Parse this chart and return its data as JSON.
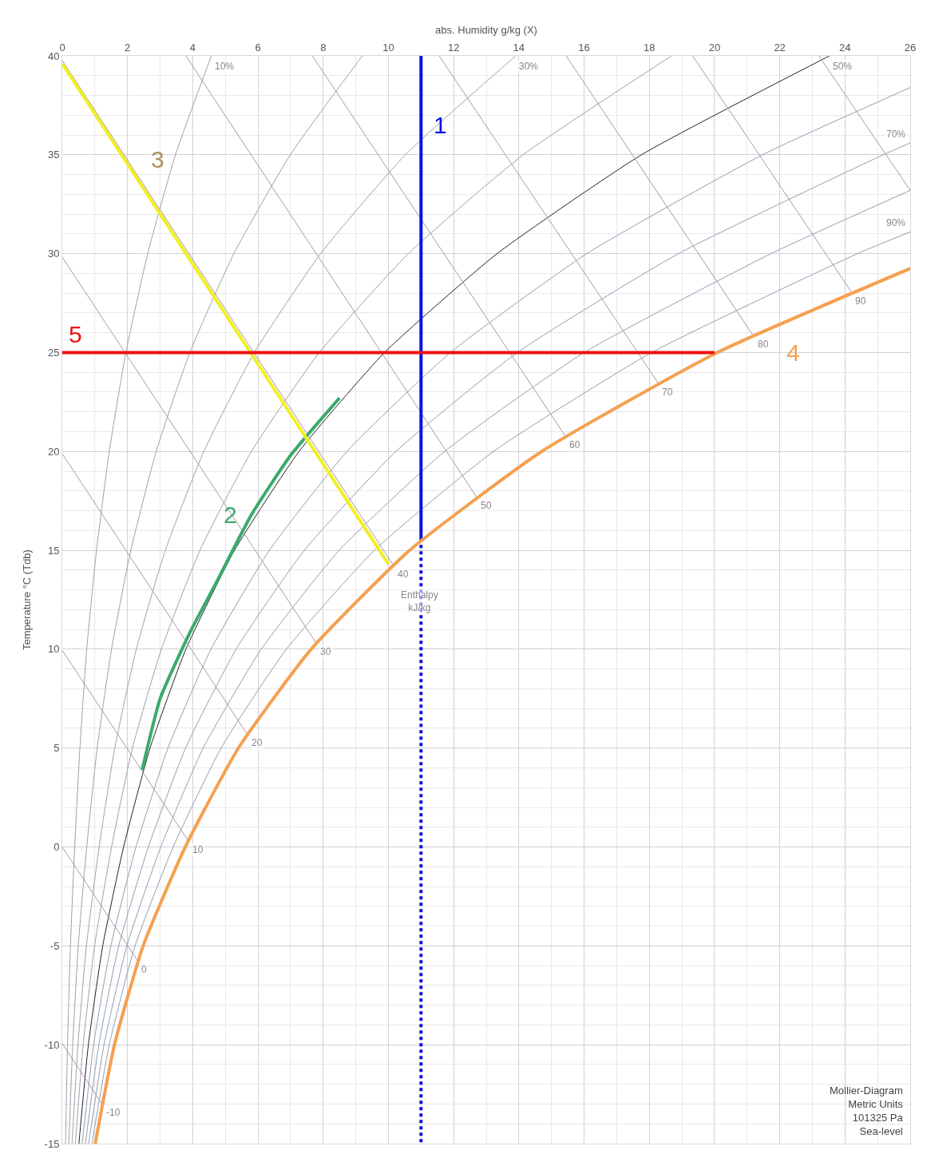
{
  "chart_data": {
    "type": "line",
    "xlabel": "abs. Humidity g/kg (X)",
    "ylabel": "Temperature °C (Tdb)",
    "xlim": [
      0,
      26
    ],
    "xticks": [
      0,
      2,
      4,
      6,
      8,
      10,
      12,
      14,
      16,
      18,
      20,
      22,
      24,
      26
    ],
    "ylim": [
      -15,
      40
    ],
    "yticks": [
      -15,
      -10,
      -5,
      0,
      5,
      10,
      15,
      20,
      25,
      30,
      35,
      40
    ],
    "grid": true,
    "marker": "none",
    "series": [
      {
        "color": "#a0a0a8",
        "x": [
          0.1,
          0.16,
          0.25,
          0.38,
          0.54,
          0.75,
          1.05,
          1.44,
          1.95,
          2.62,
          3.47,
          4.57
        ],
        "values": [
          -15,
          -10,
          -5,
          0,
          5,
          10,
          15,
          20,
          25,
          30,
          35,
          40
        ]
      },
      {
        "color": "#a0a0a8",
        "x": [
          0.2,
          0.32,
          0.49,
          0.75,
          1.07,
          1.51,
          2.1,
          2.88,
          3.91,
          5.26,
          6.99,
          9.2
        ],
        "values": [
          -15,
          -10,
          -5,
          0,
          5,
          10,
          15,
          20,
          25,
          30,
          35,
          40
        ]
      },
      {
        "color": "#a0a0a8",
        "x": [
          0.3,
          0.48,
          0.74,
          1.13,
          1.61,
          2.27,
          3.16,
          4.34,
          5.89,
          7.92,
          10.52,
          13.9
        ],
        "values": [
          -15,
          -10,
          -5,
          0,
          5,
          10,
          15,
          20,
          25,
          30,
          35,
          40
        ]
      },
      {
        "color": "#a0a0a8",
        "x": [
          0.4,
          0.64,
          0.99,
          1.51,
          2.15,
          3.04,
          4.22,
          5.8,
          7.88,
          10.61,
          14.13,
          18.68
        ],
        "values": [
          -15,
          -10,
          -5,
          0,
          5,
          10,
          15,
          20,
          25,
          30,
          35,
          40
        ]
      },
      {
        "color": "#222222",
        "x": [
          0.51,
          0.8,
          1.24,
          1.88,
          2.69,
          3.79,
          5.28,
          7.26,
          9.88,
          13.33,
          17.76,
          23.52
        ],
        "values": [
          -15,
          -10,
          -5,
          0,
          5,
          10,
          15,
          20,
          25,
          30,
          35,
          40
        ]
      },
      {
        "color": "#8f9fae",
        "x": [
          0.61,
          0.96,
          1.49,
          2.26,
          3.24,
          4.56,
          6.35,
          8.73,
          11.9,
          16.08,
          21.47,
          26
        ],
        "values": [
          -15,
          -10,
          -5,
          0,
          5,
          10,
          15,
          20,
          25,
          30,
          35,
          38.4
        ]
      },
      {
        "color": "#8f9fae",
        "x": [
          0.71,
          1.12,
          1.73,
          2.64,
          3.78,
          5.33,
          7.42,
          10.23,
          13.95,
          18.89,
          25.17,
          26
        ],
        "values": [
          -15,
          -10,
          -5,
          0,
          5,
          10,
          15,
          20,
          25,
          30,
          35,
          35.6
        ]
      },
      {
        "color": "#8f9fae",
        "x": [
          0.81,
          1.28,
          1.98,
          3.02,
          4.32,
          6.1,
          8.49,
          11.72,
          16.0,
          21.73,
          26
        ],
        "values": [
          -15,
          -10,
          -5,
          0,
          5,
          10,
          15,
          20,
          25,
          30,
          33.2
        ]
      },
      {
        "color": "#8f9fae",
        "x": [
          0.91,
          1.44,
          2.23,
          3.4,
          4.87,
          6.87,
          9.57,
          13.22,
          18.07,
          24.38,
          26
        ],
        "values": [
          -15,
          -10,
          -5,
          0,
          5,
          10,
          15,
          20,
          25,
          30,
          31.1
        ]
      },
      {
        "color": "#a89aa2",
        "x": [
          0,
          1.22
        ],
        "values": [
          -9.94,
          -13.0
        ]
      },
      {
        "color": "#a89aa2",
        "x": [
          0,
          2.31
        ],
        "values": [
          0,
          -5.75
        ]
      },
      {
        "color": "#a89aa2",
        "x": [
          0,
          3.86
        ],
        "values": [
          9.94,
          0.32
        ]
      },
      {
        "color": "#a89aa2",
        "x": [
          0,
          5.67
        ],
        "values": [
          19.88,
          5.7
        ]
      },
      {
        "color": "#a89aa2",
        "x": [
          0,
          7.79
        ],
        "values": [
          29.82,
          10.3
        ]
      },
      {
        "color": "#a89aa2",
        "x": [
          0,
          10.15
        ],
        "values": [
          39.76,
          14.25
        ]
      },
      {
        "color": "#a89aa2",
        "x": [
          3.79,
          12.7
        ],
        "values": [
          40,
          17.7
        ]
      },
      {
        "color": "#a89aa2",
        "x": [
          7.67,
          15.43
        ],
        "values": [
          40,
          20.76
        ]
      },
      {
        "color": "#a89aa2",
        "x": [
          11.56,
          18.27
        ],
        "values": [
          40,
          23.46
        ]
      },
      {
        "color": "#a89aa2",
        "x": [
          15.45,
          21.19
        ],
        "values": [
          40,
          25.85
        ]
      },
      {
        "color": "#a89aa2",
        "x": [
          19.33,
          24.2
        ],
        "values": [
          40,
          28.05
        ]
      },
      {
        "color": "#a89aa2",
        "x": [
          23.2,
          26
        ],
        "values": [
          40,
          33.2
        ]
      },
      {
        "color": "#0a10e6",
        "x": [
          11,
          11
        ],
        "values": [
          40,
          15.6
        ]
      },
      {
        "color": "#0a10e6",
        "line_style": "dotted",
        "x": [
          11,
          11
        ],
        "values": [
          15.6,
          -15
        ]
      },
      {
        "color": "#3aaa6a",
        "x": [
          2.45,
          3.0,
          3.9,
          4.7,
          5.8,
          7.0,
          8.5
        ],
        "values": [
          3.9,
          7.5,
          10.8,
          13.3,
          16.8,
          19.8,
          22.7
        ]
      },
      {
        "color": "#f0f020",
        "x": [
          0,
          1.9,
          10.0
        ],
        "values": [
          39.6,
          34.79,
          14.3
        ]
      },
      {
        "color": "#f5a050",
        "x": [
          1.01,
          1.6,
          2.48,
          3.77,
          5.4,
          7.63,
          10.65,
          14.7,
          20.08,
          26
        ],
        "values": [
          -15,
          -10,
          -5,
          0,
          5,
          10,
          15,
          20,
          25,
          29.25
        ]
      },
      {
        "color": "#ee1111",
        "x": [
          0,
          20
        ],
        "values": [
          25,
          25
        ]
      }
    ],
    "annotations": [
      {
        "text": "10%",
        "x": 4.57,
        "y": 40
      },
      {
        "text": "30%",
        "x": 13.9,
        "y": 40
      },
      {
        "text": "50%",
        "x": 23.52,
        "y": 40
      },
      {
        "text": "70%",
        "x": 26,
        "y": 35.6
      },
      {
        "text": "90%",
        "x": 26,
        "y": 31.1
      },
      {
        "text": "-10",
        "x": 1.22,
        "y": -13.0
      },
      {
        "text": "0",
        "x": 2.31,
        "y": -5.75
      },
      {
        "text": "10",
        "x": 3.86,
        "y": 0.32
      },
      {
        "text": "20",
        "x": 5.67,
        "y": 5.7
      },
      {
        "text": "30",
        "x": 7.79,
        "y": 10.3
      },
      {
        "text": "40",
        "x": 10.15,
        "y": 14.25
      },
      {
        "text": "50",
        "x": 12.7,
        "y": 17.7
      },
      {
        "text": "60",
        "x": 15.43,
        "y": 20.76
      },
      {
        "text": "70",
        "x": 18.27,
        "y": 23.46
      },
      {
        "text": "80",
        "x": 21.19,
        "y": 25.85
      },
      {
        "text": "90",
        "x": 24.2,
        "y": 28.05
      },
      {
        "text": "Enthalpy\nkJ/kg",
        "x": 10.95,
        "y": 12.4
      },
      {
        "text": "1",
        "x": 11,
        "y": 36.5
      },
      {
        "text": "2",
        "x": 5.8,
        "y": 16.8
      },
      {
        "text": "3",
        "x": 1.9,
        "y": 34.79
      },
      {
        "text": "4",
        "x": 20.08,
        "y": 25
      },
      {
        "text": "5",
        "x": 0,
        "y": 25
      },
      "Mollier-Diagram\nMetric Units\n101325 Pa\nSea-level"
    ]
  }
}
